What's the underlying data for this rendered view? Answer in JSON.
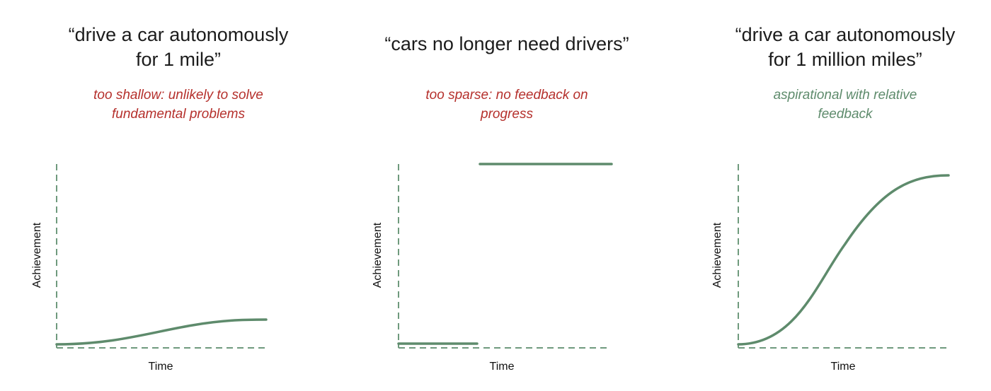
{
  "colors": {
    "negative": "#b5302c",
    "positive": "#5e8b6c",
    "axis": "#6f9a7d",
    "text": "#1c1c1c"
  },
  "panels": [
    {
      "title": "“drive a car autonomously\nfor 1 mile”",
      "critique": "too shallow: unlikely to solve\nfundamental problems",
      "critique_tone": "negative",
      "xlabel": "Time",
      "ylabel": "Achievement"
    },
    {
      "title": "“cars no longer need drivers”",
      "critique": "too sparse: no feedback on\nprogress",
      "critique_tone": "negative",
      "xlabel": "Time",
      "ylabel": "Achievement"
    },
    {
      "title": "“drive a car autonomously\nfor 1 million miles”",
      "critique": "aspirational with relative\nfeedback",
      "critique_tone": "positive",
      "xlabel": "Time",
      "ylabel": "Achievement"
    }
  ]
}
